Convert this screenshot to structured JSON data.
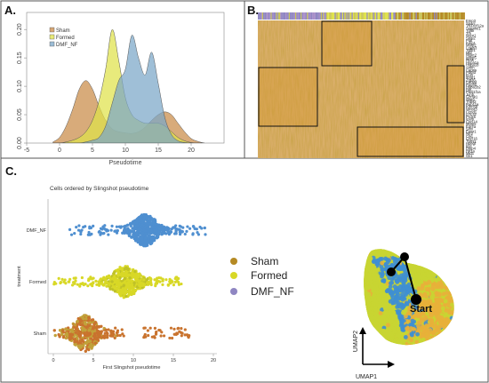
{
  "panels": {
    "a": "A.",
    "b": "B.",
    "c": "C."
  },
  "colors": {
    "sham": "#b58a24",
    "formed": "#dfe24a",
    "dmf_nf": "#7aa6c7",
    "sham_fill": "#c98a47",
    "sham_dot": "#c9732e",
    "formed_dot": "#d8d826",
    "dmf_dot": "#4f8fd0",
    "umap_sham": "#e8b03a",
    "umap_formed": "#c8d532",
    "umap_dmf": "#3f8fd1"
  },
  "panel_a": {
    "chart_data": {
      "type": "area",
      "title": "",
      "xlabel": "Pseudotime",
      "ylabel": "",
      "xlim": [
        -5,
        25
      ],
      "ylim": [
        0,
        0.23
      ],
      "xticks": [
        -5,
        0,
        5,
        10,
        15,
        20
      ],
      "yticks": [
        0,
        0.05,
        0.1,
        0.15,
        0.2
      ],
      "ytick_labels": [
        "0.00",
        "0.05",
        "0.10",
        "0.15",
        "0.20"
      ],
      "x": [
        -1,
        0,
        1,
        2,
        3,
        4,
        5,
        6,
        7,
        8,
        9,
        10,
        11,
        12,
        13,
        14,
        15,
        16,
        17,
        18,
        19,
        20,
        21,
        22
      ],
      "series": [
        {
          "name": "Sham",
          "values": [
            0.002,
            0.01,
            0.03,
            0.06,
            0.095,
            0.11,
            0.095,
            0.065,
            0.04,
            0.025,
            0.02,
            0.018,
            0.017,
            0.02,
            0.028,
            0.04,
            0.05,
            0.055,
            0.05,
            0.035,
            0.02,
            0.008,
            0.003,
            0.0
          ]
        },
        {
          "name": "Formed",
          "values": [
            0.0,
            0.0,
            0.002,
            0.005,
            0.01,
            0.02,
            0.04,
            0.075,
            0.13,
            0.2,
            0.145,
            0.08,
            0.05,
            0.04,
            0.035,
            0.035,
            0.035,
            0.03,
            0.02,
            0.01,
            0.004,
            0.001,
            0.0,
            0.0
          ]
        },
        {
          "name": "DMF_NF",
          "values": [
            0.0,
            0.0,
            0.0,
            0.0,
            0.0,
            0.002,
            0.005,
            0.01,
            0.03,
            0.07,
            0.11,
            0.13,
            0.19,
            0.15,
            0.12,
            0.16,
            0.105,
            0.045,
            0.015,
            0.004,
            0.001,
            0.0,
            0.0,
            0.0
          ]
        }
      ],
      "legend": "top-left"
    }
  },
  "panel_b": {
    "genes": [
      "Emp3",
      "Sparc",
      "TNFref12a",
      "Serpine1",
      "Tgfbi",
      "Tm",
      "Nupr1",
      "Snai2",
      "Plat",
      "Kdm1",
      "Mafb2",
      "Lgals3",
      "Tgfb1",
      "Mt2",
      "Nfatc2",
      "Igfbp5",
      "Rras",
      "Hspa1a",
      "Hspa1b",
      "Ankh",
      "Capns",
      "Pdgfd",
      "Fcer",
      "Ifngr1",
      "Zfp36",
      "Cebpd",
      "Pdgfrb",
      "Hspa1b2",
      "Btk",
      "Padi1f1a",
      "Junb",
      "Gzmk1",
      "Wnt6",
      "Thbs2",
      "Rab11a",
      "Kdm5b",
      "Nmbr3",
      "Ccnd1",
      "Lrrc32",
      "Prdx6",
      "Icam",
      "Cxcl14",
      "Mmp2",
      "Ednra",
      "Sinv",
      "Ewsr1",
      "Nrf2",
      "Crkl",
      "Cxcl16",
      "Thbs1",
      "Hbegf",
      "Il34",
      "Bmp4",
      "Hif1a",
      "Mid1",
      "Gli1"
    ]
  },
  "panel_c": {
    "swarm": {
      "chart_data": {
        "type": "scatter",
        "title": "Cells ordered by Slingshot pseudotime",
        "xlabel": "First Slingshot pseudotime",
        "ylabel": "treatment",
        "xlim": [
          -1,
          21
        ],
        "xticks": [
          0,
          5,
          10,
          15,
          20
        ],
        "categories": [
          "DMF_NF",
          "Formed",
          "Sham"
        ],
        "series": [
          {
            "name": "DMF_NF",
            "center": 11.5,
            "spread": 2.2
          },
          {
            "name": "Formed",
            "center": 9.0,
            "spread": 2.2
          },
          {
            "name": "Sham",
            "center": 4.0,
            "spread": 2.2
          }
        ]
      }
    },
    "legend": [
      {
        "label": "Sham",
        "color_key": "sham"
      },
      {
        "label": "Formed",
        "color_key": "formed_dot"
      },
      {
        "label": "DMF_NF",
        "color_key": "dmf_dot"
      }
    ],
    "umap": {
      "start_label": "Start",
      "x_label": "UMAP1",
      "y_label": "UMAP2"
    }
  }
}
